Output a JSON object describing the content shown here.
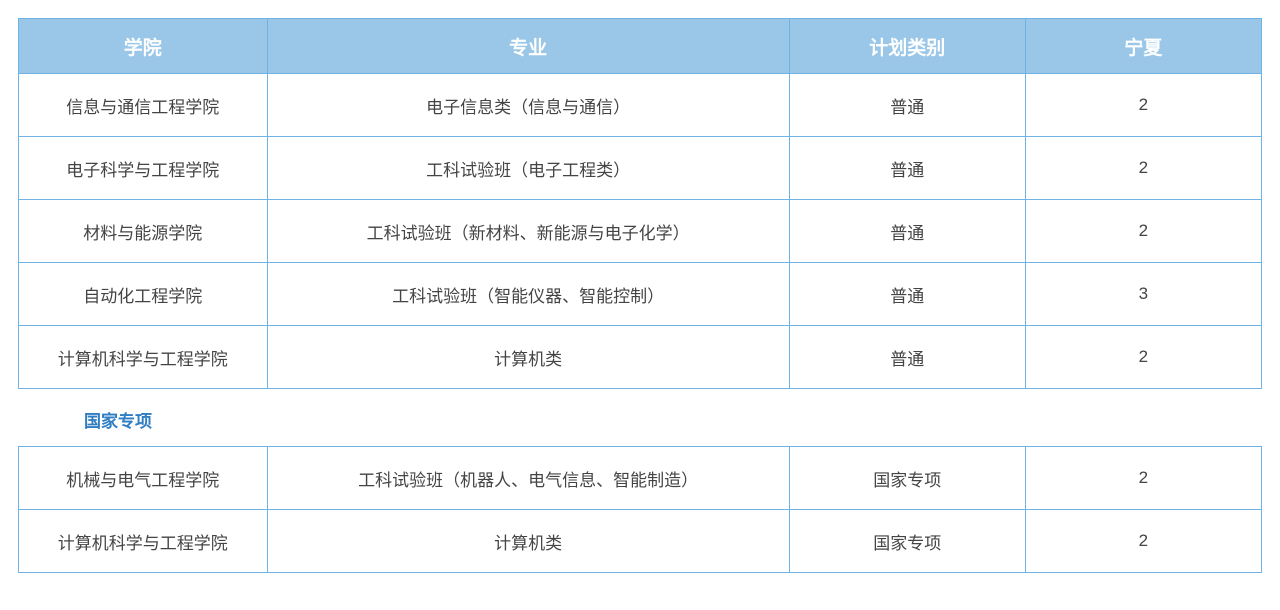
{
  "colors": {
    "header_bg": "#9ac7e8",
    "header_text": "#ffffff",
    "border": "#6eb3e4",
    "section_label": "#2f7ec2",
    "cell_text": "#444444"
  },
  "col_widths": [
    "20%",
    "42%",
    "19%",
    "19%"
  ],
  "table1": {
    "columns": [
      "学院",
      "专业",
      "计划类别",
      "宁夏"
    ],
    "rows": [
      [
        "信息与通信工程学院",
        "电子信息类（信息与通信）",
        "普通",
        "2"
      ],
      [
        "电子科学与工程学院",
        "工科试验班（电子工程类）",
        "普通",
        "2"
      ],
      [
        "材料与能源学院",
        "工科试验班（新材料、新能源与电子化学）",
        "普通",
        "2"
      ],
      [
        "自动化工程学院",
        "工科试验班（智能仪器、智能控制）",
        "普通",
        "3"
      ],
      [
        "计算机科学与工程学院",
        "计算机类",
        "普通",
        "2"
      ]
    ]
  },
  "section_label": "国家专项",
  "table2": {
    "rows": [
      [
        "机械与电气工程学院",
        "工科试验班（机器人、电气信息、智能制造）",
        "国家专项",
        "2"
      ],
      [
        "计算机科学与工程学院",
        "计算机类",
        "国家专项",
        "2"
      ]
    ]
  }
}
